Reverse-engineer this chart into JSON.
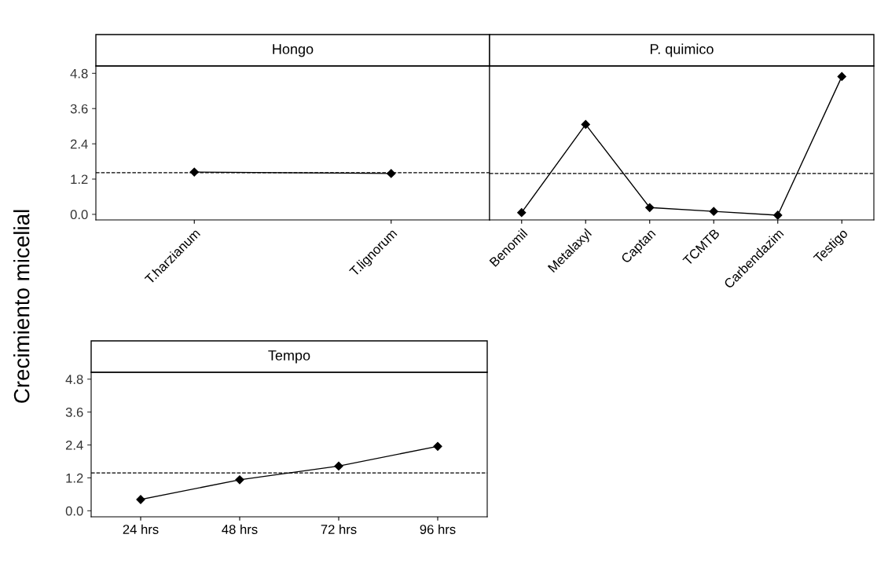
{
  "chart_data": [
    {
      "type": "line",
      "title": "Hongo",
      "ylabel": "Crecimiento micelial",
      "categories": [
        "T.harzianum",
        "T.lignorum"
      ],
      "values": [
        1.44,
        1.39
      ],
      "color": "#000000",
      "marker": "diamond",
      "line_style": "solid",
      "grid": false,
      "legend": false,
      "ylim": [
        -0.19,
        5.05
      ],
      "yticks": [
        {
          "value": 0,
          "label": "0.0"
        },
        1.2,
        2.4,
        3.6,
        4.8
      ],
      "ref_lines": [
        {
          "axis": "y",
          "value": 1.42,
          "color": "#000000",
          "line_style": "dashed"
        }
      ]
    },
    {
      "type": "line",
      "title": "P. quimico",
      "categories": [
        "Benomil",
        "Metalaxyl",
        "Captan",
        "TCMTB",
        "Carbendazim",
        "Testigo"
      ],
      "values": [
        0.06,
        3.06,
        0.23,
        0.1,
        -0.03,
        4.69
      ],
      "color": "#000000",
      "marker": "diamond",
      "line_style": "solid",
      "grid": false,
      "legend": false,
      "ylim": [
        -0.19,
        5.05
      ],
      "tick_labels": "x",
      "ref_lines": [
        {
          "axis": "y",
          "value": 1.39,
          "color": "#000000",
          "line_style": "dashed"
        }
      ]
    },
    {
      "type": "line",
      "title": "Tempo",
      "categories": [
        "24 hrs",
        "48 hrs",
        "72 hrs",
        "96 hrs"
      ],
      "values": [
        0.41,
        1.13,
        1.63,
        2.35
      ],
      "color": "#000000",
      "marker": "diamond",
      "line_style": "solid",
      "grid": false,
      "legend": false,
      "ylim": [
        -0.22,
        5.05
      ],
      "yticks": [
        {
          "value": 0,
          "label": "0.0"
        },
        1.2,
        2.4,
        3.6,
        4.8
      ],
      "ref_lines": [
        {
          "axis": "y",
          "value": 1.38,
          "color": "#000000",
          "line_style": "dashed"
        }
      ]
    }
  ]
}
